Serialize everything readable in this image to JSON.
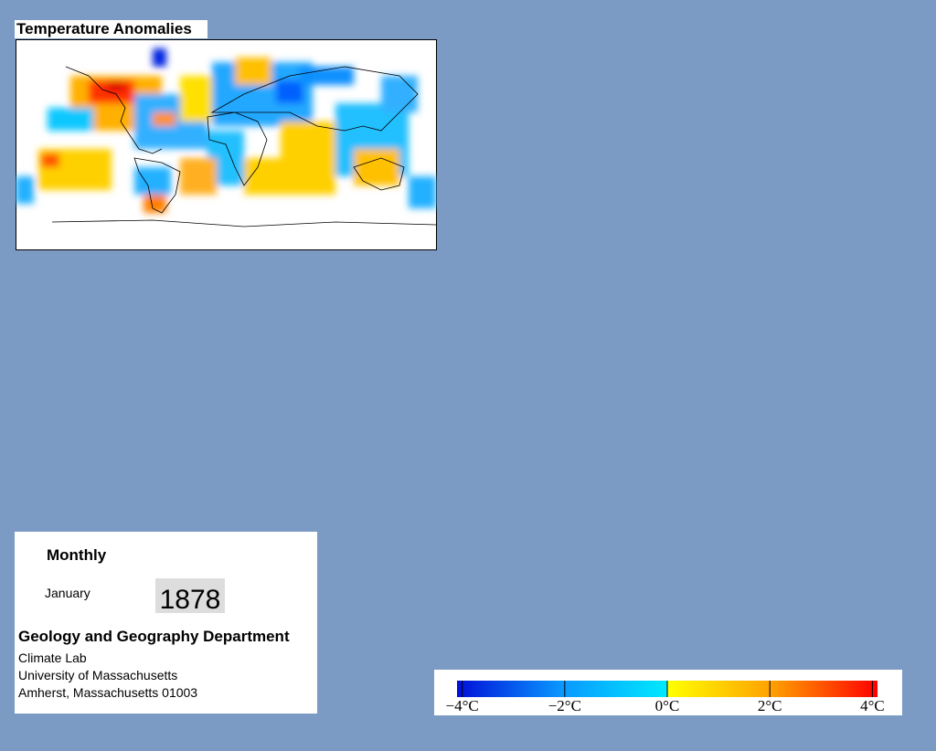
{
  "title": "Temperature Anomalies",
  "info": {
    "period": "Monthly",
    "month": "January",
    "year": "1878",
    "department": "Geology and Geography Department",
    "lines": [
      "Climate Lab",
      "University of Massachusetts",
      "Amherst, Massachusetts 01003"
    ]
  },
  "colorbar": {
    "lim": [
      -4.1,
      4.1
    ],
    "ticks": [
      {
        "value": -4,
        "label": "−4°C"
      },
      {
        "value": -2,
        "label": "−2°C"
      },
      {
        "value": 0,
        "label": "0°C"
      },
      {
        "value": 2,
        "label": "2°C"
      },
      {
        "value": 4,
        "label": "4°C"
      }
    ]
  }
}
